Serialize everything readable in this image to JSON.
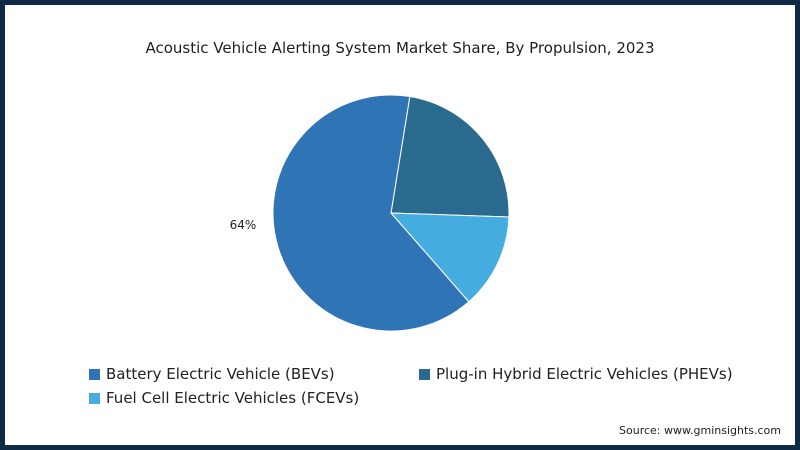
{
  "chart_data": {
    "type": "pie",
    "title": "Acoustic Vehicle Alerting System Market Share, By Propulsion, 2023",
    "slices": [
      {
        "name": "Battery Electric Vehicle (BEVs)",
        "value": 64,
        "color": "#2f74b5",
        "label": "64%"
      },
      {
        "name": "Plug-in Hybrid Electric Vehicles (PHEVs)",
        "value": 23,
        "color": "#2b6a8f",
        "label": ""
      },
      {
        "name": "Fuel Cell Electric Vehicles (FCEVs)",
        "value": 13,
        "color": "#45ace0",
        "label": ""
      }
    ],
    "legend_placement": "bottom"
  },
  "source": "Source: www.gminsights.com"
}
